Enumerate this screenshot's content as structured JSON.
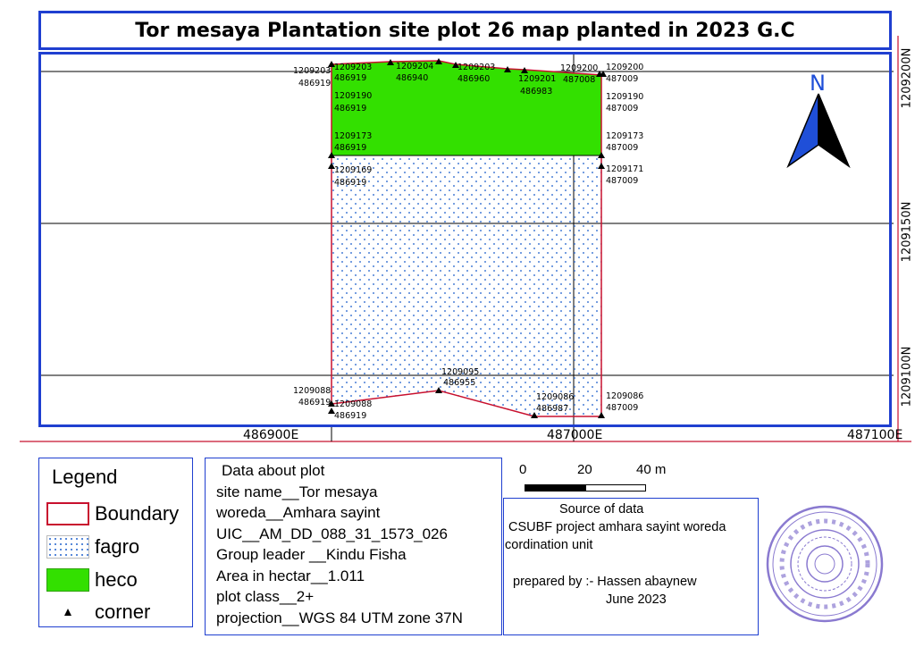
{
  "title": "Tor mesaya Plantation site plot 26 map planted in 2023 G.C",
  "north_arrow": {
    "label": "N",
    "color": "#1f4fd8"
  },
  "grid_labels": {
    "y": [
      "1209200N",
      "1209150N",
      "1209100N"
    ],
    "x": [
      "486900E",
      "487000E",
      "487100E"
    ]
  },
  "corners": [
    {
      "n": "1209203",
      "e": "486919"
    },
    {
      "n": "1209203",
      "e": "486919"
    },
    {
      "n": "1209204",
      "e": "486940"
    },
    {
      "n": "1209203",
      "e": "486960"
    },
    {
      "n": "1209201",
      "e": "486983"
    },
    {
      "n": "1209200",
      "e": "487008"
    },
    {
      "n": "1209200",
      "e": "487009"
    },
    {
      "n": "1209190",
      "e": "486919"
    },
    {
      "n": "1209190",
      "e": "487009"
    },
    {
      "n": "1209173",
      "e": "486919"
    },
    {
      "n": "1209173",
      "e": "487009"
    },
    {
      "n": "1209169",
      "e": "486919"
    },
    {
      "n": "1209171",
      "e": "487009"
    },
    {
      "n": "1209095",
      "e": "486955"
    },
    {
      "n": "1209088",
      "e": "486919"
    },
    {
      "n": "1209088",
      "e": "486919"
    },
    {
      "n": "1209086",
      "e": "486987"
    },
    {
      "n": "1209086",
      "e": "487009"
    }
  ],
  "legend": {
    "title": "Legend",
    "items": [
      {
        "label": "Boundary",
        "color": "#c8102e"
      },
      {
        "label": "fagro",
        "color": "#4a7fd6"
      },
      {
        "label": "heco",
        "color": "#33e000"
      },
      {
        "label": "corner",
        "color": "#000000"
      }
    ]
  },
  "plot_info": {
    "heading": "Data about plot",
    "lines": [
      "site name__Tor mesaya",
      "woreda__Amhara sayint",
      "UIC__AM_DD_088_31_1573_026",
      "Group leader __Kindu Fisha",
      "Area in hectar__1.011",
      "plot class__2+",
      "projection__WGS 84 UTM zone 37N"
    ]
  },
  "scale_bar": {
    "labels": [
      "0",
      "20",
      "40 m"
    ]
  },
  "source": {
    "heading": "Source of data",
    "line1": "CSUBF project amhara sayint woreda",
    "line2": "cordination unit",
    "prepared": "prepared by :- Hassen abaynew",
    "date": "June 2023"
  },
  "stamp": {
    "color": "#8a7ad0"
  }
}
